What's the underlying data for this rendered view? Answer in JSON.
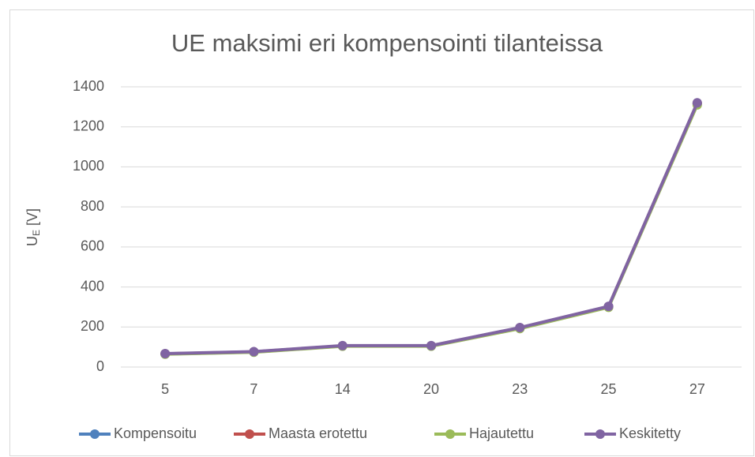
{
  "chart_data": {
    "type": "line",
    "title": "UE maksimi eri kompensointi tilanteissa",
    "y_label": {
      "main": "U",
      "sub": "E",
      "rest": " [V]"
    },
    "categories": [
      "5",
      "7",
      "14",
      "20",
      "23",
      "25",
      "27"
    ],
    "series": [
      {
        "name": "Kompensoitu",
        "color": "#4f81bd",
        "values": [
          65,
          75,
          105,
          105,
          195,
          300,
          1315
        ]
      },
      {
        "name": "Maasta erotettu",
        "color": "#c0504d",
        "values": [
          66,
          76,
          106,
          106,
          196,
          302,
          1318
        ]
      },
      {
        "name": "Hajautettu",
        "color": "#9bbb59",
        "values": [
          64,
          74,
          104,
          104,
          192,
          298,
          1310
        ]
      },
      {
        "name": "Keskitetty",
        "color": "#8064a2",
        "values": [
          67,
          77,
          107,
          107,
          197,
          303,
          1320
        ]
      }
    ],
    "ylim": [
      0,
      1400
    ],
    "yticks": [
      0,
      200,
      400,
      600,
      800,
      1000,
      1200,
      1400
    ],
    "grid": true,
    "legend": "bottom"
  }
}
